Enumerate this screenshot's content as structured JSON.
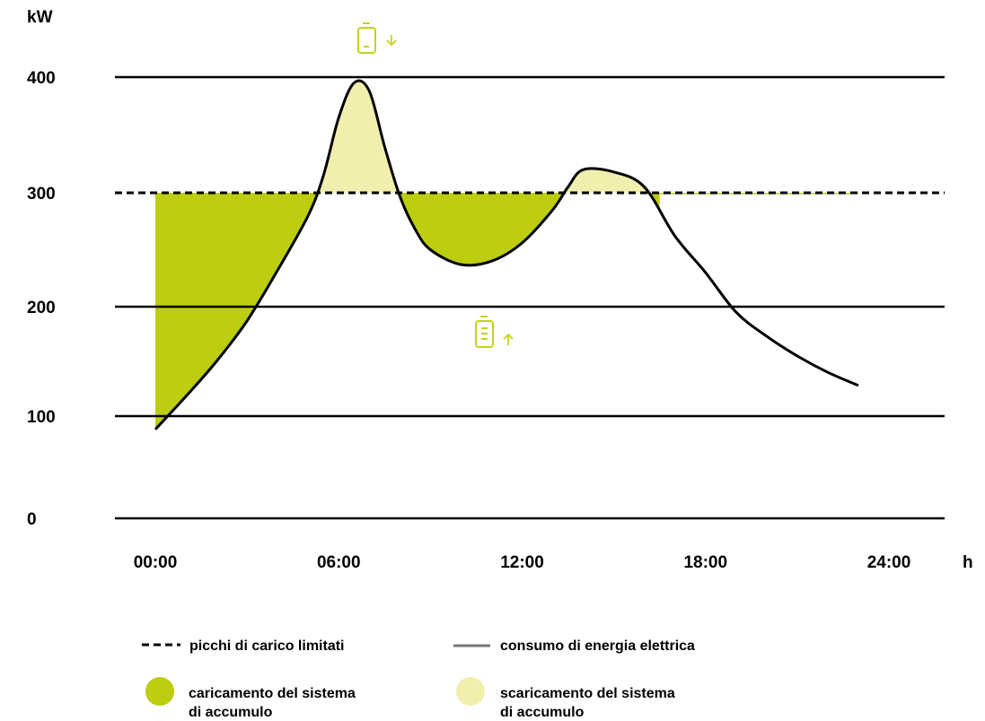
{
  "chart_data": {
    "type": "line",
    "y_unit_label": "kW",
    "x_unit_label": "h",
    "y_ticks": [
      "0",
      "100",
      "200",
      "300",
      "400"
    ],
    "x_ticks": [
      "00:00",
      "06:00",
      "12:00",
      "18:00",
      "24:00"
    ],
    "y_gridlines": [
      0,
      100,
      200,
      400
    ],
    "ylim": [
      0,
      400
    ],
    "xlim": [
      0,
      24
    ],
    "grid": true,
    "peak_limit": 300,
    "series": [
      {
        "name": "consumo di energia elettrica",
        "x": [
          0,
          1,
          2,
          3,
          4,
          5,
          5.5,
          6,
          6.5,
          7,
          7.5,
          8,
          8.5,
          9,
          10,
          11,
          12,
          13,
          13.5,
          14,
          15,
          16,
          17,
          18,
          19,
          20,
          21,
          22,
          23
        ],
        "y": [
          87,
          118,
          150,
          187,
          232,
          280,
          315,
          365,
          395,
          388,
          340,
          297,
          268,
          250,
          237,
          240,
          256,
          285,
          305,
          320,
          318,
          305,
          262,
          230,
          195,
          173,
          155,
          140,
          128
        ]
      }
    ],
    "legend": {
      "position": "bottom",
      "items": [
        {
          "label": "picchi di carico limitati",
          "symbol": "dashed-line",
          "color": "#000000"
        },
        {
          "label": "consumo di energia elettrica",
          "symbol": "solid-line",
          "color": "#777777"
        },
        {
          "label_lines": [
            "caricamento del sistema",
            "di accumulo"
          ],
          "symbol": "circle",
          "color": "#bdcd10"
        },
        {
          "label_lines": [
            "scaricamento del sistema",
            "di accumulo"
          ],
          "symbol": "circle",
          "color": "#f1efae"
        }
      ]
    },
    "colors": {
      "charge_fill": "#bdcd10",
      "discharge_fill": "#f1efae",
      "icon_color": "#c5d21b",
      "line": "#000000"
    },
    "icons": [
      {
        "name": "battery-discharge-icon",
        "position": "above"
      },
      {
        "name": "battery-charge-icon",
        "position": "below"
      }
    ]
  }
}
